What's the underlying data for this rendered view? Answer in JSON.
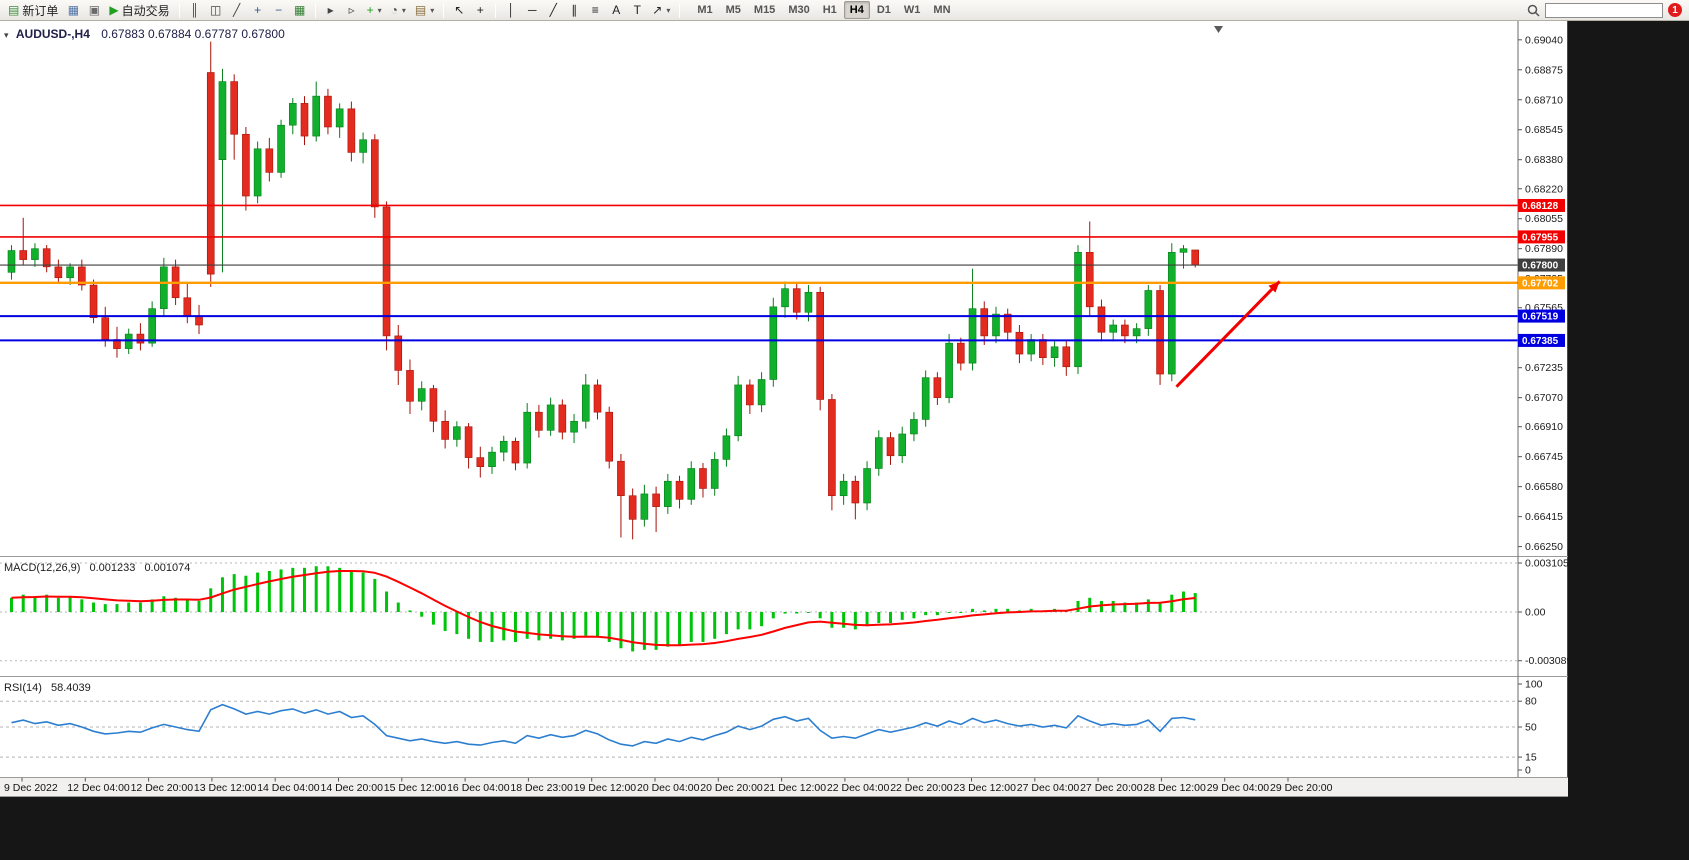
{
  "toolbar": {
    "items": [
      {
        "name": "new-order-button",
        "type": "button",
        "glyph": "▤",
        "glyph_color": "#3c8f3c",
        "label": "新订单"
      },
      {
        "name": "charts-window-button",
        "type": "icon",
        "glyph": "▦",
        "glyph_color": "#4f74a8"
      },
      {
        "name": "market-profile-button",
        "type": "icon",
        "glyph": "▣",
        "glyph_color": "#6a6a6a"
      },
      {
        "name": "auto-trading-button",
        "type": "button",
        "glyph": "▶",
        "glyph_color": "#21a121",
        "label": "自动交易"
      },
      {
        "type": "sep"
      },
      {
        "name": "bar-chart-type-button",
        "type": "icon",
        "glyph": "║",
        "glyph_color": "#444444"
      },
      {
        "name": "cand​lestick-type-button",
        "type": "icon",
        "glyph": "◫",
        "glyph_color": "#444444"
      },
      {
        "name": "line-chart-type-button",
        "type": "icon",
        "glyph": "╱",
        "glyph_color": "#444444"
      },
      {
        "name": "zoom-in-button",
        "type": "icon",
        "glyph": "+",
        "glyph_color": "#335c8f"
      },
      {
        "name": "zoom-out-button",
        "type": "icon",
        "glyph": "−",
        "glyph_color": "#335c8f"
      },
      {
        "name": "tile-windows-button",
        "type": "icon",
        "glyph": "▦",
        "glyph_color": "#2f7d2f"
      },
      {
        "type": "sep"
      },
      {
        "name": "auto-scroll-button",
        "type": "icon",
        "glyph": "▸",
        "glyph_color": "#444444"
      },
      {
        "name": "chart-shift-button",
        "type": "icon",
        "glyph": "▹",
        "glyph_color": "#444444"
      },
      {
        "name": "new-chart-button",
        "type": "icon",
        "glyph": "+",
        "glyph_color": "#21a121",
        "dropdown": true
      },
      {
        "name": "periods-button",
        "type": "icon",
        "glyph": "◔",
        "glyph_color": "#444444",
        "dropdown": true
      },
      {
        "name": "templates-button",
        "type": "icon",
        "glyph": "▤",
        "glyph_color": "#8a6d3b",
        "dropdown": true
      },
      {
        "type": "sep"
      },
      {
        "name": "cursor-button",
        "type": "icon",
        "glyph": "↖",
        "glyph_color": "#222222"
      },
      {
        "name": "crosshair-button",
        "type": "icon",
        "glyph": "+",
        "glyph_color": "#222222"
      },
      {
        "type": "sep"
      },
      {
        "name": "vertical-line-button",
        "type": "icon",
        "glyph": "│",
        "glyph_color": "#222222"
      },
      {
        "name": "horizontal-line-button",
        "type": "icon",
        "glyph": "─",
        "glyph_color": "#222222"
      },
      {
        "name": "trendline-button",
        "type": "icon",
        "glyph": "╱",
        "glyph_color": "#222222"
      },
      {
        "name": "channel-button",
        "type": "icon",
        "glyph": "∥",
        "glyph_color": "#222222"
      },
      {
        "name": "fibonacci-button",
        "type": "icon",
        "glyph": "≡",
        "glyph_color": "#222222"
      },
      {
        "name": "text-button",
        "type": "icon",
        "glyph": "A",
        "glyph_color": "#222222"
      },
      {
        "name": "label-button",
        "type": "icon",
        "glyph": "T",
        "glyph_color": "#222222"
      },
      {
        "name": "arrow-tools-button",
        "type": "icon",
        "glyph": "↗",
        "glyph_color": "#222222",
        "dropdown": true
      },
      {
        "type": "sep"
      }
    ],
    "timeframes": [
      "M1",
      "M5",
      "M15",
      "M30",
      "H1",
      "H4",
      "D1",
      "W1",
      "MN"
    ],
    "active_timeframe": "H4",
    "search_placeholder": "",
    "notification_count": "1"
  },
  "icons": {
    "one_click_arrow": "▾",
    "shift_marker": "▾"
  },
  "chart": {
    "symbol_label": "AUDUSD-,H4",
    "ohlc_text": "0.67883 0.67884 0.67787 0.67800"
  },
  "macd_panel": {
    "name": "MACD(12,26,9)",
    "value_main": "0.001233",
    "value_signal": "0.001074"
  },
  "rsi_panel": {
    "name": "RSI(14)",
    "value": "58.4039"
  },
  "chart_data": [
    {
      "type": "candlestick",
      "title": "AUDUSD H4",
      "timeframe": "H4",
      "ylim": [
        0.6625,
        0.69105
      ],
      "y_tick_labels": [
        "0.69040",
        "0.68875",
        "0.68710",
        "0.68545",
        "0.68380",
        "0.68220",
        "0.68055",
        "0.67890",
        "0.67725",
        "0.67565",
        "0.67400",
        "0.67235",
        "0.67070",
        "0.66910",
        "0.66745",
        "0.66580",
        "0.66415",
        "0.66250"
      ],
      "x_labels": [
        "9 Dec 2022",
        "12 Dec 04:00",
        "12 Dec 20:00",
        "13 Dec 12:00",
        "14 Dec 04:00",
        "14 Dec 20:00",
        "15 Dec 12:00",
        "16 Dec 04:00",
        "18 Dec 23:00",
        "19 Dec 12:00",
        "20 Dec 04:00",
        "20 Dec 20:00",
        "21 Dec 12:00",
        "22 Dec 04:00",
        "22 Dec 20:00",
        "23 Dec 12:00",
        "27 Dec 04:00",
        "27 Dec 20:00",
        "28 Dec 12:00",
        "29 Dec 04:00",
        "29 Dec 20:00"
      ],
      "colors": {
        "bull": "#10b02c",
        "bull_border": "#067d1a",
        "bear": "#e32b1f",
        "bear_border": "#a81208"
      },
      "candles": [
        [
          0.6776,
          0.6791,
          0.6772,
          0.6788
        ],
        [
          0.6788,
          0.6806,
          0.678,
          0.6783
        ],
        [
          0.6783,
          0.6792,
          0.6779,
          0.6789
        ],
        [
          0.6789,
          0.6791,
          0.6776,
          0.6779
        ],
        [
          0.6779,
          0.6783,
          0.677,
          0.6773
        ],
        [
          0.6773,
          0.6781,
          0.6769,
          0.6779
        ],
        [
          0.6779,
          0.6783,
          0.6766,
          0.6769
        ],
        [
          0.6769,
          0.6772,
          0.6748,
          0.6751
        ],
        [
          0.6751,
          0.6757,
          0.6735,
          0.6739
        ],
        [
          0.6739,
          0.6746,
          0.6729,
          0.6734
        ],
        [
          0.6734,
          0.6745,
          0.6731,
          0.6742
        ],
        [
          0.6742,
          0.6748,
          0.6733,
          0.6737
        ],
        [
          0.6737,
          0.676,
          0.6735,
          0.6756
        ],
        [
          0.6756,
          0.6784,
          0.6752,
          0.6779
        ],
        [
          0.6779,
          0.6783,
          0.6758,
          0.6762
        ],
        [
          0.6762,
          0.677,
          0.6748,
          0.6752
        ],
        [
          0.6752,
          0.6758,
          0.6742,
          0.6747
        ],
        [
          0.6886,
          0.6903,
          0.6768,
          0.6775
        ],
        [
          0.6838,
          0.6888,
          0.6776,
          0.6881
        ],
        [
          0.6881,
          0.6885,
          0.6838,
          0.6852
        ],
        [
          0.6852,
          0.6856,
          0.681,
          0.6818
        ],
        [
          0.6818,
          0.6848,
          0.6814,
          0.6844
        ],
        [
          0.6844,
          0.685,
          0.6826,
          0.6831
        ],
        [
          0.6831,
          0.686,
          0.6828,
          0.6857
        ],
        [
          0.6857,
          0.6872,
          0.6852,
          0.6869
        ],
        [
          0.6869,
          0.6873,
          0.6846,
          0.6851
        ],
        [
          0.6851,
          0.6881,
          0.6848,
          0.6873
        ],
        [
          0.6873,
          0.6877,
          0.6852,
          0.6856
        ],
        [
          0.6856,
          0.6869,
          0.685,
          0.6866
        ],
        [
          0.6866,
          0.687,
          0.6837,
          0.6842
        ],
        [
          0.6842,
          0.6853,
          0.6836,
          0.6849
        ],
        [
          0.6849,
          0.6852,
          0.6806,
          0.6812
        ],
        [
          0.6812,
          0.6815,
          0.6733,
          0.6741
        ],
        [
          0.6741,
          0.6747,
          0.6714,
          0.6722
        ],
        [
          0.6722,
          0.6728,
          0.6698,
          0.6705
        ],
        [
          0.6705,
          0.6716,
          0.67,
          0.6712
        ],
        [
          0.6712,
          0.6714,
          0.6688,
          0.6694
        ],
        [
          0.6694,
          0.67,
          0.6679,
          0.6684
        ],
        [
          0.6684,
          0.6694,
          0.668,
          0.6691
        ],
        [
          0.6691,
          0.6693,
          0.6668,
          0.6674
        ],
        [
          0.6674,
          0.668,
          0.6663,
          0.6669
        ],
        [
          0.6669,
          0.668,
          0.6665,
          0.6677
        ],
        [
          0.6677,
          0.6686,
          0.6672,
          0.6683
        ],
        [
          0.6683,
          0.6685,
          0.6667,
          0.6671
        ],
        [
          0.6671,
          0.6704,
          0.6668,
          0.6699
        ],
        [
          0.6699,
          0.6703,
          0.6685,
          0.6689
        ],
        [
          0.6689,
          0.6707,
          0.6686,
          0.6703
        ],
        [
          0.6703,
          0.6706,
          0.6684,
          0.6688
        ],
        [
          0.6688,
          0.6698,
          0.6682,
          0.6694
        ],
        [
          0.6694,
          0.672,
          0.669,
          0.6714
        ],
        [
          0.6714,
          0.6717,
          0.6695,
          0.6699
        ],
        [
          0.6699,
          0.6702,
          0.6668,
          0.6672
        ],
        [
          0.6672,
          0.6676,
          0.663,
          0.6653
        ],
        [
          0.6653,
          0.6657,
          0.6629,
          0.664
        ],
        [
          0.664,
          0.6659,
          0.6636,
          0.6654
        ],
        [
          0.6654,
          0.6658,
          0.6633,
          0.6647
        ],
        [
          0.6647,
          0.6665,
          0.6643,
          0.6661
        ],
        [
          0.6661,
          0.6664,
          0.6646,
          0.6651
        ],
        [
          0.6651,
          0.6672,
          0.6648,
          0.6668
        ],
        [
          0.6668,
          0.6671,
          0.6652,
          0.6657
        ],
        [
          0.6657,
          0.6677,
          0.6653,
          0.6673
        ],
        [
          0.6673,
          0.669,
          0.6669,
          0.6686
        ],
        [
          0.6686,
          0.6719,
          0.6683,
          0.6714
        ],
        [
          0.6714,
          0.6717,
          0.6698,
          0.6703
        ],
        [
          0.6703,
          0.6721,
          0.6699,
          0.6717
        ],
        [
          0.6717,
          0.6762,
          0.6713,
          0.6757
        ],
        [
          0.6757,
          0.6771,
          0.6751,
          0.6767
        ],
        [
          0.6767,
          0.677,
          0.675,
          0.6754
        ],
        [
          0.6754,
          0.6769,
          0.6749,
          0.6765
        ],
        [
          0.6765,
          0.6768,
          0.67,
          0.6706
        ],
        [
          0.6706,
          0.6709,
          0.6645,
          0.6653
        ],
        [
          0.6653,
          0.6665,
          0.6648,
          0.6661
        ],
        [
          0.6661,
          0.6664,
          0.664,
          0.6649
        ],
        [
          0.6649,
          0.6672,
          0.6645,
          0.6668
        ],
        [
          0.6668,
          0.6689,
          0.6664,
          0.6685
        ],
        [
          0.6685,
          0.6688,
          0.667,
          0.6675
        ],
        [
          0.6675,
          0.6691,
          0.6671,
          0.6687
        ],
        [
          0.6687,
          0.6699,
          0.6683,
          0.6695
        ],
        [
          0.6695,
          0.6722,
          0.6691,
          0.6718
        ],
        [
          0.6718,
          0.6721,
          0.6703,
          0.6707
        ],
        [
          0.6707,
          0.6742,
          0.6704,
          0.6737
        ],
        [
          0.6737,
          0.674,
          0.6722,
          0.6726
        ],
        [
          0.6726,
          0.6778,
          0.6722,
          0.6756
        ],
        [
          0.6756,
          0.676,
          0.6736,
          0.6741
        ],
        [
          0.6741,
          0.6757,
          0.6737,
          0.6753
        ],
        [
          0.6753,
          0.6756,
          0.6739,
          0.6743
        ],
        [
          0.6743,
          0.6747,
          0.6726,
          0.6731
        ],
        [
          0.6731,
          0.6742,
          0.6727,
          0.6739
        ],
        [
          0.6739,
          0.6742,
          0.6725,
          0.6729
        ],
        [
          0.6729,
          0.6738,
          0.6724,
          0.6735
        ],
        [
          0.6735,
          0.6738,
          0.6719,
          0.6724
        ],
        [
          0.6724,
          0.6791,
          0.672,
          0.6787
        ],
        [
          0.6787,
          0.6804,
          0.6752,
          0.6757
        ],
        [
          0.6757,
          0.6761,
          0.6738,
          0.6743
        ],
        [
          0.6743,
          0.675,
          0.6738,
          0.6747
        ],
        [
          0.6747,
          0.675,
          0.6737,
          0.6741
        ],
        [
          0.6741,
          0.6748,
          0.6737,
          0.6745
        ],
        [
          0.6745,
          0.6769,
          0.6741,
          0.6766
        ],
        [
          0.6766,
          0.6769,
          0.6714,
          0.672
        ],
        [
          0.672,
          0.6792,
          0.6716,
          0.6787
        ],
        [
          0.6787,
          0.6791,
          0.6778,
          0.6789
        ],
        [
          0.67883,
          0.67884,
          0.67787,
          0.678
        ]
      ],
      "hlines": [
        {
          "price": 0.68128,
          "label": "0.68128",
          "color": "#f20000",
          "width": 1.6
        },
        {
          "price": 0.67955,
          "label": "0.67955",
          "color": "#f20000",
          "width": 1.6
        },
        {
          "price": 0.678,
          "label": "0.67800",
          "color": "#3f3f3f",
          "width": 1.2
        },
        {
          "price": 0.67702,
          "label": "0.67702",
          "color": "#ff9c00",
          "width": 2.4
        },
        {
          "price": 0.67519,
          "label": "0.67519",
          "color": "#0000e0",
          "width": 2
        },
        {
          "price": 0.67385,
          "label": "0.67385",
          "color": "#0000e0",
          "width": 2
        }
      ],
      "arrow": {
        "from_index": 99.4,
        "from_price": 0.6713,
        "to_index": 108.5,
        "to_price": 0.6771,
        "color": "#f20000"
      }
    },
    {
      "type": "bar",
      "name": "MACD(12,26,9)",
      "signal_period": 9,
      "current": {
        "macd": 0.001233,
        "signal": 0.001074
      },
      "axis_ticks": [
        {
          "v": 0.003105,
          "label": "0.003105"
        },
        {
          "v": 0,
          "label": "0.00"
        },
        {
          "v": -0.003089,
          "label": "-0.003089"
        }
      ],
      "colors": {
        "histogram": "#00c40a",
        "signal": "#ff0000"
      },
      "values": [
        0.0009,
        0.0011,
        0.001,
        0.0011,
        0.0009,
        0.001,
        0.0008,
        0.0006,
        0.0005,
        0.0005,
        0.0006,
        0.0006,
        0.0008,
        0.001,
        0.0009,
        0.0008,
        0.0007,
        0.0015,
        0.0022,
        0.0024,
        0.0023,
        0.0025,
        0.0026,
        0.0027,
        0.0028,
        0.0028,
        0.0029,
        0.0029,
        0.0028,
        0.0026,
        0.0025,
        0.0021,
        0.0013,
        0.0006,
        0.0001,
        -0.0003,
        -0.0008,
        -0.0012,
        -0.0014,
        -0.0017,
        -0.0019,
        -0.0019,
        -0.0018,
        -0.0019,
        -0.0017,
        -0.0018,
        -0.0017,
        -0.0018,
        -0.0017,
        -0.0015,
        -0.0016,
        -0.0019,
        -0.0023,
        -0.0025,
        -0.0024,
        -0.0024,
        -0.0022,
        -0.0021,
        -0.0019,
        -0.0019,
        -0.0017,
        -0.0014,
        -0.0011,
        -0.0011,
        -0.0009,
        -0.0004,
        -0.0001,
        -0.0001,
        0.0,
        -0.0004,
        -0.001,
        -0.001,
        -0.0011,
        -0.0009,
        -0.0007,
        -0.0007,
        -0.0005,
        -0.0004,
        -0.0002,
        -0.0002,
        0.0,
        0.0,
        0.0002,
        0.0001,
        0.0002,
        0.0002,
        0.0001,
        0.0002,
        0.0001,
        0.0002,
        0.0001,
        0.0007,
        0.0009,
        0.0007,
        0.0007,
        0.0006,
        0.0006,
        0.0008,
        0.0006,
        0.0011,
        0.0013,
        0.0012
      ]
    },
    {
      "type": "line",
      "name": "RSI(14)",
      "current": 58.4039,
      "ylim": [
        0,
        100
      ],
      "levels": [
        80,
        50,
        15
      ],
      "axis_ticks": [
        {
          "v": 100,
          "label": "100"
        },
        {
          "v": 80,
          "label": "80"
        },
        {
          "v": 50,
          "label": "50"
        },
        {
          "v": 15,
          "label": "15"
        },
        {
          "v": 0,
          "label": "0"
        }
      ],
      "color": "#2c7fd0",
      "values": [
        55,
        58,
        54,
        56,
        52,
        54,
        50,
        45,
        42,
        43,
        45,
        44,
        49,
        53,
        50,
        47,
        45,
        70,
        76,
        71,
        65,
        68,
        65,
        69,
        71,
        66,
        70,
        65,
        68,
        61,
        63,
        53,
        40,
        37,
        34,
        36,
        33,
        31,
        33,
        30,
        29,
        32,
        34,
        31,
        40,
        37,
        41,
        38,
        40,
        46,
        42,
        35,
        30,
        28,
        33,
        31,
        36,
        33,
        38,
        35,
        40,
        44,
        51,
        47,
        51,
        59,
        62,
        57,
        60,
        46,
        37,
        39,
        37,
        42,
        47,
        44,
        47,
        50,
        55,
        51,
        57,
        53,
        60,
        55,
        58,
        54,
        51,
        53,
        50,
        52,
        49,
        63,
        57,
        52,
        54,
        52,
        53,
        58,
        45,
        60,
        61,
        58.4
      ]
    }
  ]
}
